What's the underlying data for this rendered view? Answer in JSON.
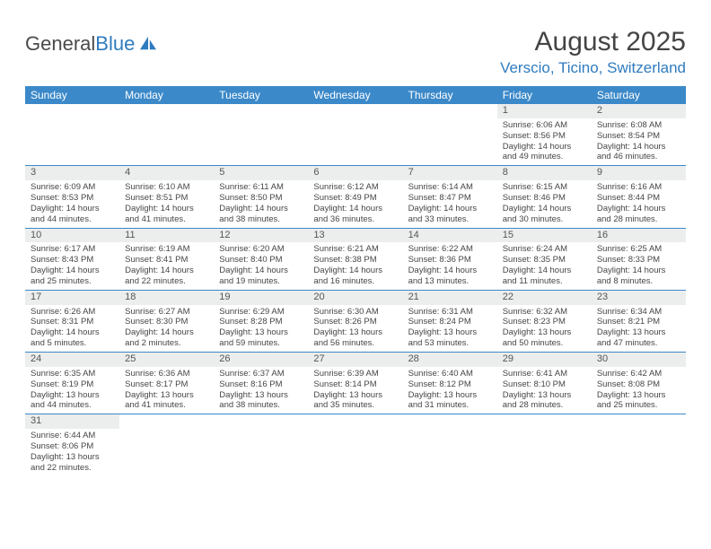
{
  "logo": {
    "text1": "General",
    "text2": "Blue"
  },
  "title": "August 2025",
  "location": "Verscio, Ticino, Switzerland",
  "colors": {
    "header_bg": "#3b89c9",
    "header_fg": "#ffffff",
    "daynum_bg": "#eceded",
    "rule": "#3b89c9",
    "accent": "#2f7bbf",
    "text": "#464646"
  },
  "day_headers": [
    "Sunday",
    "Monday",
    "Tuesday",
    "Wednesday",
    "Thursday",
    "Friday",
    "Saturday"
  ],
  "weeks": [
    [
      {
        "n": "",
        "sr": "",
        "ss": "",
        "dl": ""
      },
      {
        "n": "",
        "sr": "",
        "ss": "",
        "dl": ""
      },
      {
        "n": "",
        "sr": "",
        "ss": "",
        "dl": ""
      },
      {
        "n": "",
        "sr": "",
        "ss": "",
        "dl": ""
      },
      {
        "n": "",
        "sr": "",
        "ss": "",
        "dl": ""
      },
      {
        "n": "1",
        "sr": "Sunrise: 6:06 AM",
        "ss": "Sunset: 8:56 PM",
        "dl": "Daylight: 14 hours and 49 minutes."
      },
      {
        "n": "2",
        "sr": "Sunrise: 6:08 AM",
        "ss": "Sunset: 8:54 PM",
        "dl": "Daylight: 14 hours and 46 minutes."
      }
    ],
    [
      {
        "n": "3",
        "sr": "Sunrise: 6:09 AM",
        "ss": "Sunset: 8:53 PM",
        "dl": "Daylight: 14 hours and 44 minutes."
      },
      {
        "n": "4",
        "sr": "Sunrise: 6:10 AM",
        "ss": "Sunset: 8:51 PM",
        "dl": "Daylight: 14 hours and 41 minutes."
      },
      {
        "n": "5",
        "sr": "Sunrise: 6:11 AM",
        "ss": "Sunset: 8:50 PM",
        "dl": "Daylight: 14 hours and 38 minutes."
      },
      {
        "n": "6",
        "sr": "Sunrise: 6:12 AM",
        "ss": "Sunset: 8:49 PM",
        "dl": "Daylight: 14 hours and 36 minutes."
      },
      {
        "n": "7",
        "sr": "Sunrise: 6:14 AM",
        "ss": "Sunset: 8:47 PM",
        "dl": "Daylight: 14 hours and 33 minutes."
      },
      {
        "n": "8",
        "sr": "Sunrise: 6:15 AM",
        "ss": "Sunset: 8:46 PM",
        "dl": "Daylight: 14 hours and 30 minutes."
      },
      {
        "n": "9",
        "sr": "Sunrise: 6:16 AM",
        "ss": "Sunset: 8:44 PM",
        "dl": "Daylight: 14 hours and 28 minutes."
      }
    ],
    [
      {
        "n": "10",
        "sr": "Sunrise: 6:17 AM",
        "ss": "Sunset: 8:43 PM",
        "dl": "Daylight: 14 hours and 25 minutes."
      },
      {
        "n": "11",
        "sr": "Sunrise: 6:19 AM",
        "ss": "Sunset: 8:41 PM",
        "dl": "Daylight: 14 hours and 22 minutes."
      },
      {
        "n": "12",
        "sr": "Sunrise: 6:20 AM",
        "ss": "Sunset: 8:40 PM",
        "dl": "Daylight: 14 hours and 19 minutes."
      },
      {
        "n": "13",
        "sr": "Sunrise: 6:21 AM",
        "ss": "Sunset: 8:38 PM",
        "dl": "Daylight: 14 hours and 16 minutes."
      },
      {
        "n": "14",
        "sr": "Sunrise: 6:22 AM",
        "ss": "Sunset: 8:36 PM",
        "dl": "Daylight: 14 hours and 13 minutes."
      },
      {
        "n": "15",
        "sr": "Sunrise: 6:24 AM",
        "ss": "Sunset: 8:35 PM",
        "dl": "Daylight: 14 hours and 11 minutes."
      },
      {
        "n": "16",
        "sr": "Sunrise: 6:25 AM",
        "ss": "Sunset: 8:33 PM",
        "dl": "Daylight: 14 hours and 8 minutes."
      }
    ],
    [
      {
        "n": "17",
        "sr": "Sunrise: 6:26 AM",
        "ss": "Sunset: 8:31 PM",
        "dl": "Daylight: 14 hours and 5 minutes."
      },
      {
        "n": "18",
        "sr": "Sunrise: 6:27 AM",
        "ss": "Sunset: 8:30 PM",
        "dl": "Daylight: 14 hours and 2 minutes."
      },
      {
        "n": "19",
        "sr": "Sunrise: 6:29 AM",
        "ss": "Sunset: 8:28 PM",
        "dl": "Daylight: 13 hours and 59 minutes."
      },
      {
        "n": "20",
        "sr": "Sunrise: 6:30 AM",
        "ss": "Sunset: 8:26 PM",
        "dl": "Daylight: 13 hours and 56 minutes."
      },
      {
        "n": "21",
        "sr": "Sunrise: 6:31 AM",
        "ss": "Sunset: 8:24 PM",
        "dl": "Daylight: 13 hours and 53 minutes."
      },
      {
        "n": "22",
        "sr": "Sunrise: 6:32 AM",
        "ss": "Sunset: 8:23 PM",
        "dl": "Daylight: 13 hours and 50 minutes."
      },
      {
        "n": "23",
        "sr": "Sunrise: 6:34 AM",
        "ss": "Sunset: 8:21 PM",
        "dl": "Daylight: 13 hours and 47 minutes."
      }
    ],
    [
      {
        "n": "24",
        "sr": "Sunrise: 6:35 AM",
        "ss": "Sunset: 8:19 PM",
        "dl": "Daylight: 13 hours and 44 minutes."
      },
      {
        "n": "25",
        "sr": "Sunrise: 6:36 AM",
        "ss": "Sunset: 8:17 PM",
        "dl": "Daylight: 13 hours and 41 minutes."
      },
      {
        "n": "26",
        "sr": "Sunrise: 6:37 AM",
        "ss": "Sunset: 8:16 PM",
        "dl": "Daylight: 13 hours and 38 minutes."
      },
      {
        "n": "27",
        "sr": "Sunrise: 6:39 AM",
        "ss": "Sunset: 8:14 PM",
        "dl": "Daylight: 13 hours and 35 minutes."
      },
      {
        "n": "28",
        "sr": "Sunrise: 6:40 AM",
        "ss": "Sunset: 8:12 PM",
        "dl": "Daylight: 13 hours and 31 minutes."
      },
      {
        "n": "29",
        "sr": "Sunrise: 6:41 AM",
        "ss": "Sunset: 8:10 PM",
        "dl": "Daylight: 13 hours and 28 minutes."
      },
      {
        "n": "30",
        "sr": "Sunrise: 6:42 AM",
        "ss": "Sunset: 8:08 PM",
        "dl": "Daylight: 13 hours and 25 minutes."
      }
    ],
    [
      {
        "n": "31",
        "sr": "Sunrise: 6:44 AM",
        "ss": "Sunset: 8:06 PM",
        "dl": "Daylight: 13 hours and 22 minutes."
      },
      {
        "n": "",
        "sr": "",
        "ss": "",
        "dl": ""
      },
      {
        "n": "",
        "sr": "",
        "ss": "",
        "dl": ""
      },
      {
        "n": "",
        "sr": "",
        "ss": "",
        "dl": ""
      },
      {
        "n": "",
        "sr": "",
        "ss": "",
        "dl": ""
      },
      {
        "n": "",
        "sr": "",
        "ss": "",
        "dl": ""
      },
      {
        "n": "",
        "sr": "",
        "ss": "",
        "dl": ""
      }
    ]
  ]
}
